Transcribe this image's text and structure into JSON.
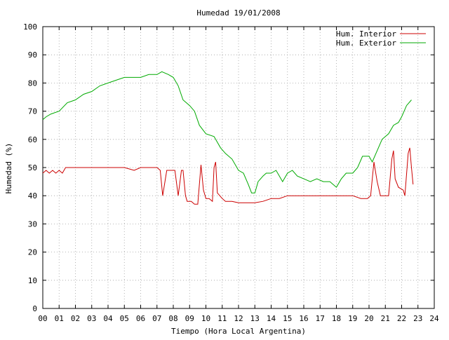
{
  "chart_data": {
    "type": "line",
    "title": "Humedad 19/01/2008",
    "xlabel": "Tiempo (Hora Local Argentina)",
    "ylabel": "Humedad (%)",
    "xlim": [
      0,
      24
    ],
    "ylim": [
      0,
      100
    ],
    "x_ticks": [
      "00",
      "01",
      "02",
      "03",
      "04",
      "05",
      "06",
      "07",
      "08",
      "09",
      "10",
      "11",
      "12",
      "13",
      "14",
      "15",
      "16",
      "17",
      "18",
      "19",
      "20",
      "21",
      "22",
      "23",
      "24"
    ],
    "y_ticks": [
      0,
      10,
      20,
      30,
      40,
      50,
      60,
      70,
      80,
      90,
      100
    ],
    "grid": true,
    "legend_position": "top-right",
    "series": [
      {
        "name": "Hum. Interior",
        "color": "#cc0000",
        "points": [
          [
            0.0,
            48
          ],
          [
            0.2,
            49
          ],
          [
            0.4,
            48
          ],
          [
            0.6,
            49
          ],
          [
            0.8,
            48
          ],
          [
            1.0,
            49
          ],
          [
            1.2,
            48
          ],
          [
            1.4,
            50
          ],
          [
            1.7,
            50
          ],
          [
            2.0,
            50
          ],
          [
            3.0,
            50
          ],
          [
            4.0,
            50
          ],
          [
            5.0,
            50
          ],
          [
            5.6,
            49
          ],
          [
            6.0,
            50
          ],
          [
            6.5,
            50
          ],
          [
            7.0,
            50
          ],
          [
            7.2,
            49
          ],
          [
            7.35,
            40
          ],
          [
            7.6,
            49
          ],
          [
            8.1,
            49
          ],
          [
            8.3,
            40
          ],
          [
            8.5,
            49
          ],
          [
            8.6,
            49
          ],
          [
            8.75,
            40
          ],
          [
            8.85,
            38
          ],
          [
            9.1,
            38
          ],
          [
            9.3,
            37
          ],
          [
            9.5,
            37
          ],
          [
            9.7,
            51
          ],
          [
            9.85,
            42
          ],
          [
            10.0,
            39
          ],
          [
            10.2,
            39
          ],
          [
            10.4,
            38
          ],
          [
            10.5,
            50
          ],
          [
            10.6,
            52
          ],
          [
            10.7,
            41
          ],
          [
            11.0,
            39
          ],
          [
            11.2,
            38
          ],
          [
            11.6,
            38
          ],
          [
            12.0,
            37.5
          ],
          [
            13.0,
            37.5
          ],
          [
            13.5,
            38
          ],
          [
            14.0,
            39
          ],
          [
            14.5,
            39
          ],
          [
            15.0,
            40
          ],
          [
            16.0,
            40
          ],
          [
            17.0,
            40
          ],
          [
            18.0,
            40
          ],
          [
            19.0,
            40
          ],
          [
            19.5,
            39
          ],
          [
            19.9,
            39
          ],
          [
            20.1,
            40
          ],
          [
            20.3,
            52
          ],
          [
            20.5,
            45
          ],
          [
            20.7,
            40
          ],
          [
            21.2,
            40
          ],
          [
            21.4,
            53
          ],
          [
            21.5,
            56
          ],
          [
            21.6,
            46
          ],
          [
            21.8,
            43
          ],
          [
            22.1,
            42
          ],
          [
            22.2,
            40
          ],
          [
            22.4,
            55
          ],
          [
            22.5,
            57
          ],
          [
            22.6,
            50
          ],
          [
            22.7,
            44
          ]
        ]
      },
      {
        "name": "Hum. Exterior",
        "color": "#00aa00",
        "points": [
          [
            0.0,
            67
          ],
          [
            0.2,
            68
          ],
          [
            0.5,
            69
          ],
          [
            1.0,
            70
          ],
          [
            1.5,
            73
          ],
          [
            2.0,
            74
          ],
          [
            2.5,
            76
          ],
          [
            3.0,
            77
          ],
          [
            3.5,
            79
          ],
          [
            4.0,
            80
          ],
          [
            4.5,
            81
          ],
          [
            5.0,
            82
          ],
          [
            6.0,
            82
          ],
          [
            6.5,
            83
          ],
          [
            7.0,
            83
          ],
          [
            7.3,
            84
          ],
          [
            7.7,
            83
          ],
          [
            8.0,
            82
          ],
          [
            8.3,
            79
          ],
          [
            8.6,
            74
          ],
          [
            9.0,
            72
          ],
          [
            9.3,
            70
          ],
          [
            9.6,
            65
          ],
          [
            10.0,
            62
          ],
          [
            10.5,
            61
          ],
          [
            10.9,
            57
          ],
          [
            11.2,
            55
          ],
          [
            11.6,
            53
          ],
          [
            12.0,
            49
          ],
          [
            12.3,
            48
          ],
          [
            12.6,
            44
          ],
          [
            12.8,
            41
          ],
          [
            13.0,
            41
          ],
          [
            13.2,
            45
          ],
          [
            13.5,
            47
          ],
          [
            13.7,
            48
          ],
          [
            14.0,
            48
          ],
          [
            14.3,
            49
          ],
          [
            14.7,
            45
          ],
          [
            15.0,
            48
          ],
          [
            15.3,
            49
          ],
          [
            15.6,
            47
          ],
          [
            16.0,
            46
          ],
          [
            16.4,
            45
          ],
          [
            16.8,
            46
          ],
          [
            17.2,
            45
          ],
          [
            17.6,
            45
          ],
          [
            18.0,
            43
          ],
          [
            18.3,
            46
          ],
          [
            18.6,
            48
          ],
          [
            19.0,
            48
          ],
          [
            19.3,
            50
          ],
          [
            19.6,
            54
          ],
          [
            20.0,
            54
          ],
          [
            20.2,
            52
          ],
          [
            20.5,
            56
          ],
          [
            20.8,
            60
          ],
          [
            21.2,
            62
          ],
          [
            21.5,
            65
          ],
          [
            21.8,
            66
          ],
          [
            22.0,
            68
          ],
          [
            22.3,
            72
          ],
          [
            22.6,
            74
          ]
        ]
      }
    ]
  }
}
